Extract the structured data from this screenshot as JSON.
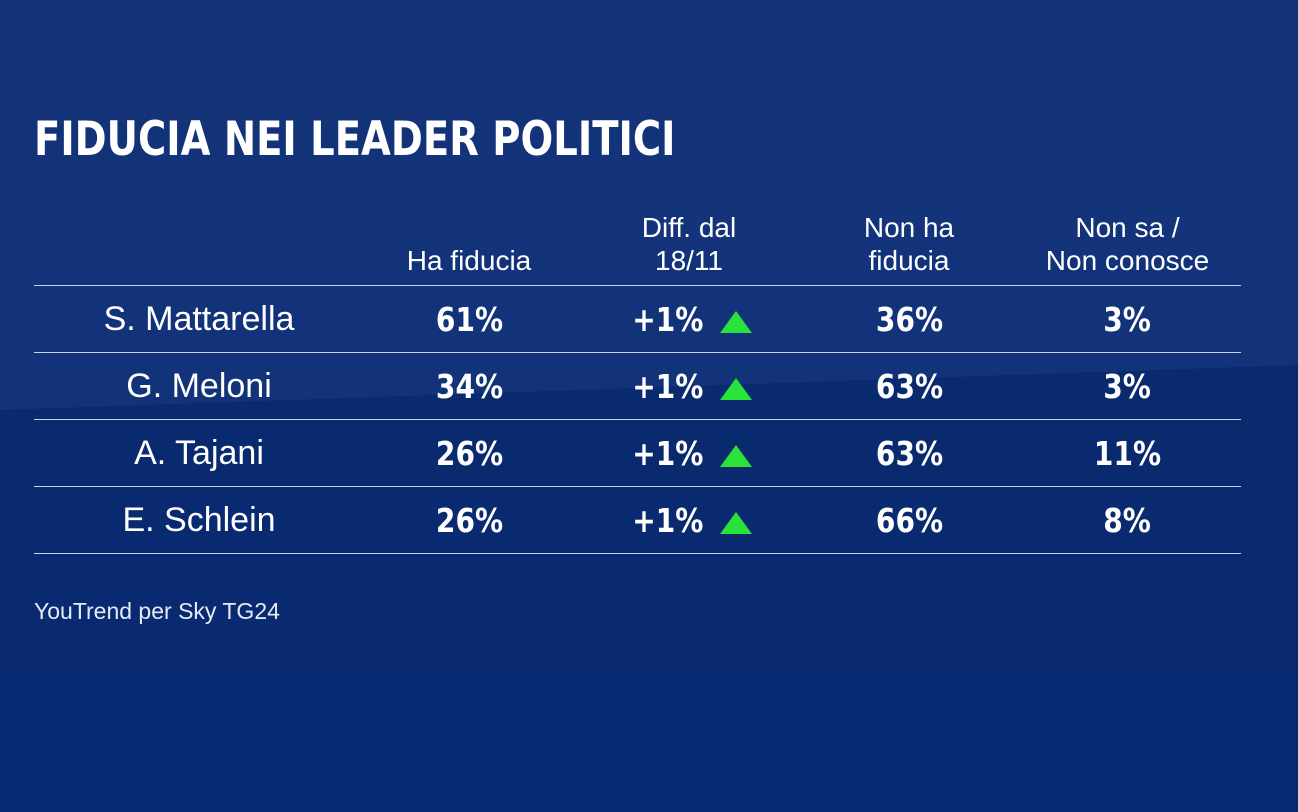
{
  "title": "FIDUCIA NEI LEADER POLITICI",
  "colors": {
    "background": "#0a2a70",
    "up_arrow": "#29e23a",
    "rule": "#c9d3e8"
  },
  "chart_data": {
    "type": "table",
    "columns": [
      "",
      "Ha fiducia",
      "Diff. dal 18/11",
      "Non ha fiducia",
      "Non sa / Non conosce"
    ],
    "header_lines": {
      "col1": [
        "",
        "Ha fiducia"
      ],
      "col2": [
        "Diff. dal",
        "18/11"
      ],
      "col3": [
        "Non ha",
        "fiducia"
      ],
      "col4": [
        "Non sa /",
        "Non conosce"
      ]
    },
    "rows": [
      {
        "name": "S. Mattarella",
        "ha_fiducia": "61%",
        "diff": "+1%",
        "trend": "up-triangle-icon",
        "non_ha_fiducia": "36%",
        "non_sa": "3%"
      },
      {
        "name": "G. Meloni",
        "ha_fiducia": "34%",
        "diff": "+1%",
        "trend": "up-triangle-icon",
        "non_ha_fiducia": "63%",
        "non_sa": "3%"
      },
      {
        "name": "A. Tajani",
        "ha_fiducia": "26%",
        "diff": "+1%",
        "trend": "up-triangle-icon",
        "non_ha_fiducia": "63%",
        "non_sa": "11%"
      },
      {
        "name": "E. Schlein",
        "ha_fiducia": "26%",
        "diff": "+1%",
        "trend": "up-triangle-icon",
        "non_ha_fiducia": "66%",
        "non_sa": "8%"
      }
    ]
  },
  "source": "YouTrend per Sky TG24"
}
